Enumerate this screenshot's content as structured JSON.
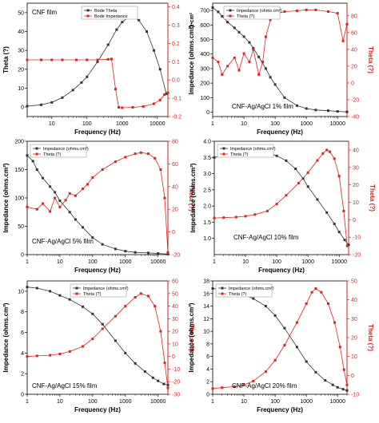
{
  "chart_data": [
    {
      "type": "scatter",
      "film_label": "CNF film",
      "xlabel": "Frequency (Hz)",
      "ylabel_left": "Theta (?)",
      "ylabel_right": "",
      "legend": [
        "Bode Theta",
        "Bode Impedance"
      ],
      "legend_position": "top-center",
      "x_log": true,
      "xlim": [
        2,
        20000
      ],
      "x_ticks": [
        "10",
        "100",
        "1000",
        "10000"
      ],
      "ylim_left": [
        -5,
        55
      ],
      "y_ticks_left": [
        "0",
        "10",
        "20",
        "30",
        "40",
        "50"
      ],
      "ylim_right": [
        -0.2,
        0.42
      ],
      "y_ticks_right": [
        "-0.2",
        "-0.1",
        "0.0",
        "0.1",
        "0.2",
        "0.3",
        "0.4"
      ],
      "series": [
        {
          "axis": "left",
          "color": "#333333",
          "x": [
            2,
            5,
            10,
            20,
            40,
            70,
            100,
            200,
            400,
            700,
            1000,
            1500,
            2000,
            3000,
            5000,
            8000,
            12000,
            18000
          ],
          "y": [
            0.5,
            1.2,
            2.5,
            5,
            9,
            13,
            16,
            24,
            33,
            41,
            45,
            47.5,
            48,
            46,
            40,
            30,
            20,
            7
          ]
        },
        {
          "axis": "right",
          "color": "#dd2222",
          "x": [
            2,
            5,
            10,
            20,
            50,
            100,
            200,
            400,
            500,
            650,
            800,
            1000,
            2000,
            4000,
            8000,
            12000,
            16000,
            20000
          ],
          "y": [
            0.11,
            0.11,
            0.11,
            0.11,
            0.11,
            0.11,
            0.11,
            0.113,
            0.115,
            -0.05,
            -0.15,
            -0.152,
            -0.15,
            -0.145,
            -0.13,
            -0.11,
            -0.08,
            -0.07
          ]
        }
      ]
    },
    {
      "type": "scatter",
      "film_label": "CNF-Ag/AgCl 1% film",
      "xlabel": "Frequency (Hz)",
      "ylabel_left": "Impedance (ohms.cm²)",
      "ylabel_left_unit": "Ω•cm²",
      "ylabel_right": "Theta (?)",
      "legend": [
        "Impedance (ohms.cm²)",
        "Theta (?)"
      ],
      "legend_position": "top-left",
      "x_log": true,
      "xlim": [
        1,
        20000
      ],
      "x_ticks": [
        "1",
        "10",
        "100",
        "1000",
        "10000"
      ],
      "ylim_left": [
        -30,
        750
      ],
      "y_ticks_left": [
        "0",
        "100",
        "200",
        "300",
        "400",
        "500",
        "600",
        "700"
      ],
      "ylim_right": [
        -40,
        95
      ],
      "y_ticks_right": [
        "-40",
        "-20",
        "0",
        "20",
        "40",
        "60",
        "80"
      ],
      "series": [
        {
          "axis": "left",
          "color": "#333333",
          "x": [
            1,
            1.5,
            2,
            3,
            5,
            7,
            10,
            15,
            20,
            30,
            50,
            70,
            100,
            200,
            500,
            1000,
            2000,
            5000,
            10000,
            20000
          ],
          "y": [
            720,
            690,
            660,
            620,
            580,
            550,
            520,
            480,
            440,
            380,
            300,
            240,
            190,
            100,
            45,
            25,
            15,
            10,
            5,
            2
          ]
        },
        {
          "axis": "right",
          "color": "#dd2222",
          "x": [
            1,
            1.5,
            2,
            3,
            5,
            7,
            10,
            15,
            20,
            30,
            40,
            50,
            70,
            100,
            200,
            500,
            1000,
            2000,
            5000,
            10000,
            15000,
            20000
          ],
          "y": [
            30,
            25,
            10,
            20,
            30,
            15,
            35,
            25,
            40,
            10,
            25,
            55,
            75,
            82,
            85,
            86,
            87,
            87,
            85,
            83,
            50,
            70
          ]
        }
      ]
    },
    {
      "type": "scatter",
      "film_label": "CNF-Ag/AgCl 5% film",
      "xlabel": "Frequency (Hz)",
      "ylabel_left": "Impedance (ohms.cm²)",
      "ylabel_right": "Theta (?)",
      "legend": [
        "Impedance (ohms.cm²)",
        "Theta (?)"
      ],
      "legend_position": "top-left",
      "x_log": true,
      "xlim": [
        1,
        20000
      ],
      "x_ticks": [
        "1",
        "10",
        "100",
        "1000",
        "10000"
      ],
      "ylim_left": [
        0,
        200
      ],
      "y_ticks_left": [
        "0",
        "50",
        "100",
        "150",
        "200"
      ],
      "ylim_right": [
        -20,
        80
      ],
      "y_ticks_right": [
        "-20",
        "0",
        "20",
        "40",
        "60",
        "80"
      ],
      "series": [
        {
          "axis": "left",
          "color": "#333333",
          "x": [
            1,
            1.5,
            2,
            3,
            5,
            7,
            10,
            20,
            30,
            50,
            100,
            200,
            500,
            1000,
            2000,
            5000,
            10000,
            20000
          ],
          "y": [
            175,
            165,
            150,
            135,
            120,
            110,
            95,
            75,
            62,
            48,
            30,
            18,
            10,
            6,
            4,
            3,
            2,
            1
          ]
        },
        {
          "axis": "right",
          "color": "#dd2222",
          "x": [
            1,
            2,
            3,
            5,
            7,
            10,
            15,
            20,
            30,
            50,
            70,
            100,
            200,
            500,
            1000,
            2000,
            3000,
            5000,
            8000,
            12000,
            16000,
            20000
          ],
          "y": [
            22,
            20,
            25,
            18,
            30,
            22,
            28,
            34,
            32,
            38,
            42,
            48,
            55,
            62,
            66,
            69,
            70,
            69,
            65,
            55,
            30,
            -18
          ]
        }
      ]
    },
    {
      "type": "scatter",
      "film_label": "CNF-Ag/AgCl 10% film",
      "xlabel": "Frequency (Hz)",
      "ylabel_left": "Impedance (ohms.cm²)",
      "ylabel_right": "Theta (?)",
      "legend": [
        "Impedance (ohms.cm²)",
        "Theta (?)"
      ],
      "legend_position": "top-left",
      "x_log": true,
      "xlim": [
        1,
        20000
      ],
      "x_ticks": [
        "1",
        "10",
        "100",
        "1000",
        "10000"
      ],
      "ylim_left": [
        0.5,
        4.0
      ],
      "y_ticks_left": [
        "1.0",
        "1.5",
        "2.0",
        "2.5",
        "3.0",
        "3.5",
        "4.0"
      ],
      "ylim_right": [
        -20,
        45
      ],
      "y_ticks_right": [
        "-20",
        "-10",
        "0",
        "10",
        "20",
        "30",
        "40"
      ],
      "series": [
        {
          "axis": "left",
          "color": "#333333",
          "x": [
            1,
            2,
            5,
            10,
            20,
            40,
            70,
            100,
            200,
            400,
            700,
            1000,
            2000,
            4000,
            7000,
            10000,
            15000,
            20000
          ],
          "y": [
            3.5,
            3.55,
            3.6,
            3.62,
            3.65,
            3.65,
            3.6,
            3.55,
            3.4,
            3.15,
            2.85,
            2.6,
            2.2,
            1.8,
            1.45,
            1.2,
            0.95,
            0.8
          ]
        },
        {
          "axis": "right",
          "color": "#dd2222",
          "x": [
            1,
            2,
            5,
            10,
            20,
            50,
            100,
            200,
            500,
            1000,
            2000,
            3000,
            4000,
            5000,
            7000,
            10000,
            14000,
            18000
          ],
          "y": [
            1,
            1.2,
            1.5,
            2,
            3,
            5,
            9,
            14,
            21,
            27,
            34,
            38,
            40,
            39,
            35,
            25,
            5,
            -15
          ]
        }
      ]
    },
    {
      "type": "scatter",
      "film_label": "CNF-Ag/AgCl 15% film",
      "xlabel": "Frequency (Hz)",
      "ylabel_left": "Impedance (ohms.cm²)",
      "ylabel_right": "Theta (?)",
      "legend": [
        "Impedance (ohms.cm²)",
        "Theta (?)"
      ],
      "legend_position": "top-center",
      "x_log": true,
      "xlim": [
        1,
        20000
      ],
      "x_ticks": [
        "1",
        "10",
        "100",
        "1000",
        "10000"
      ],
      "ylim_left": [
        0,
        11
      ],
      "y_ticks_left": [
        "0",
        "2",
        "4",
        "6",
        "8",
        "10"
      ],
      "ylim_right": [
        -30,
        60
      ],
      "y_ticks_right": [
        "-30",
        "-20",
        "-10",
        "0",
        "10",
        "20",
        "30",
        "40",
        "50",
        "60"
      ],
      "series": [
        {
          "axis": "left",
          "color": "#333333",
          "x": [
            1,
            2,
            5,
            10,
            20,
            50,
            100,
            200,
            500,
            1000,
            2000,
            4000,
            7000,
            10000,
            15000,
            20000
          ],
          "y": [
            10.4,
            10.3,
            10,
            9.6,
            9.2,
            8.5,
            7.8,
            6.8,
            5.2,
            4,
            3,
            2.2,
            1.6,
            1.3,
            1,
            0.9
          ]
        },
        {
          "axis": "right",
          "color": "#dd2222",
          "x": [
            1,
            2,
            5,
            10,
            20,
            50,
            100,
            200,
            500,
            1000,
            2000,
            3000,
            5000,
            8000,
            12000,
            16000,
            20000
          ],
          "y": [
            0,
            0.5,
            1,
            2,
            4,
            8,
            14,
            22,
            32,
            40,
            47,
            50,
            48,
            40,
            20,
            -5,
            -25
          ]
        }
      ]
    },
    {
      "type": "scatter",
      "film_label": "CNF-Ag/AgCl 20% film",
      "xlabel": "Frequency (Hz)",
      "ylabel_left": "Impedance (ohms.cm²)",
      "ylabel_right": "Theta (?)",
      "legend": [
        "Impedance (ohms.cm²)",
        "Theta (?)"
      ],
      "legend_position": "top-left",
      "x_log": true,
      "xlim": [
        1,
        20000
      ],
      "x_ticks": [
        "1",
        "10",
        "100",
        "1000",
        "10000"
      ],
      "ylim_left": [
        0,
        18
      ],
      "y_ticks_left": [
        "0",
        "2",
        "4",
        "6",
        "8",
        "10",
        "12",
        "14",
        "16",
        "18"
      ],
      "ylim_right": [
        -10,
        50
      ],
      "y_ticks_right": [
        "-10",
        "0",
        "10",
        "20",
        "30",
        "40",
        "50"
      ],
      "series": [
        {
          "axis": "left",
          "color": "#333333",
          "x": [
            1,
            2,
            5,
            10,
            20,
            50,
            100,
            200,
            500,
            1000,
            2000,
            4000,
            7000,
            10000,
            15000,
            20000
          ],
          "y": [
            16.8,
            16.6,
            16.2,
            15.8,
            15.2,
            14,
            12.5,
            10.5,
            7.5,
            5.2,
            3.5,
            2.2,
            1.5,
            1.1,
            0.8,
            0.6
          ]
        },
        {
          "axis": "right",
          "color": "#dd2222",
          "x": [
            1,
            2,
            5,
            10,
            20,
            50,
            100,
            200,
            500,
            1000,
            1500,
            2000,
            3000,
            5000,
            8000,
            12000,
            16000,
            20000
          ],
          "y": [
            -7,
            -6.5,
            -6,
            -5,
            -3,
            2,
            8,
            16,
            28,
            38,
            44,
            46,
            44,
            38,
            28,
            15,
            3,
            -5
          ]
        }
      ]
    }
  ]
}
